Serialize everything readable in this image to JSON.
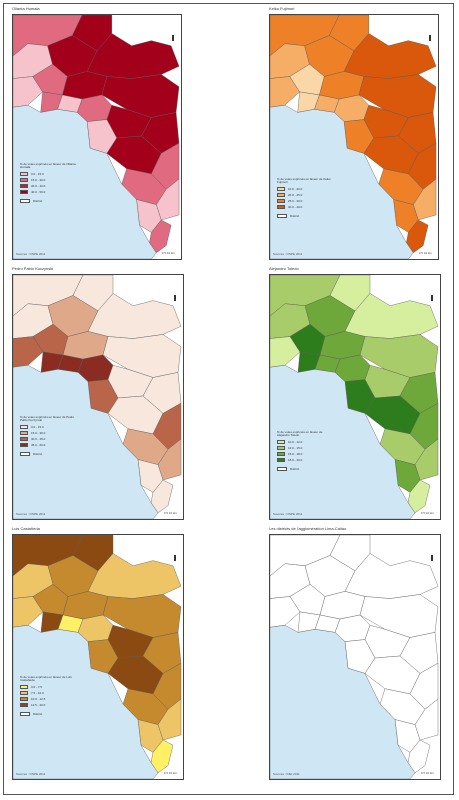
{
  "colors": {
    "sea": "#cfe6f5",
    "border": "#5b5b5b"
  },
  "panels": [
    {
      "title": "Ollanta Humala",
      "legend_title": "% de votes exprimés en faveur de Ollanta Humala",
      "classes": [
        "0.0 - 15.0",
        "15.0 - 30.0",
        "30.0 - 40.0",
        "40.0 - 50.0"
      ],
      "ramp": [
        "#f6c3cc",
        "#e06a7f",
        "#c21e33",
        "#a3001b"
      ],
      "boundary_label": "District",
      "source": "Sources : ONPE 2011",
      "scale_label": "0 5 10 km"
    },
    {
      "title": "Keiko Fujimori",
      "legend_title": "% de votes exprimés en faveur de Keiko Fujimori",
      "classes": [
        "10.0 - 20.0",
        "20.0 - 25.0",
        "25.0 - 30.0",
        "30.0 - 40.0"
      ],
      "ramp": [
        "#fbd7a8",
        "#f6ae67",
        "#ee8127",
        "#d9580b"
      ],
      "boundary_label": "District",
      "source": "Sources : ONPE 2011",
      "scale_label": "0 5 10 km"
    },
    {
      "title": "Pedro Pablo Kuczynski",
      "legend_title": "% de votes exprimés en faveur de Pedro Pablo Kuczynski",
      "classes": [
        "0.0 - 15.0",
        "15.0 - 30.0",
        "30.0 - 45.0",
        "45.0 - 60.0"
      ],
      "ramp": [
        "#f7e7dc",
        "#dfa989",
        "#b9654a",
        "#8b2c22"
      ],
      "boundary_label": "District",
      "source": "Sources : ONPE 2011",
      "scale_label": "0 5 10 km"
    },
    {
      "title": "Alejandro Toledo",
      "legend_title": "% de votes exprimés en faveur de Alejandro Toledo",
      "classes": [
        "10.0 - 12.0",
        "12.0 - 15.0",
        "15.0 - 18.0",
        "18.0 - 30.0"
      ],
      "ramp": [
        "#d6ef9e",
        "#a8cc6a",
        "#6fa83a",
        "#2e7d1c"
      ],
      "boundary_label": "District",
      "source": "Sources : ONPE 2011",
      "scale_label": "0 5 10 km"
    },
    {
      "title": "Luis Castañeda",
      "legend_title": "% de votes exprimés en faveur de Luis Castañeda",
      "classes": [
        "0.0 - 7.5",
        "7.5 - 10.0",
        "10.0 - 12.5",
        "12.5 - 20.0"
      ],
      "ramp": [
        "#fff066",
        "#edc566",
        "#c58a2e",
        "#8a4a12"
      ],
      "boundary_label": "District",
      "source": "Sources : ONPE 2011",
      "scale_label": "0 5 10 km"
    },
    {
      "title": "Les districts de l'agglomération Lima-Callao",
      "legend_title": "",
      "classes": [],
      "ramp": [
        "#ffffff",
        "#ffffff",
        "#ffffff",
        "#ffffff"
      ],
      "boundary_label": "",
      "source": "Sources : INEI 2011",
      "scale_label": "0 5 10 km"
    }
  ]
}
